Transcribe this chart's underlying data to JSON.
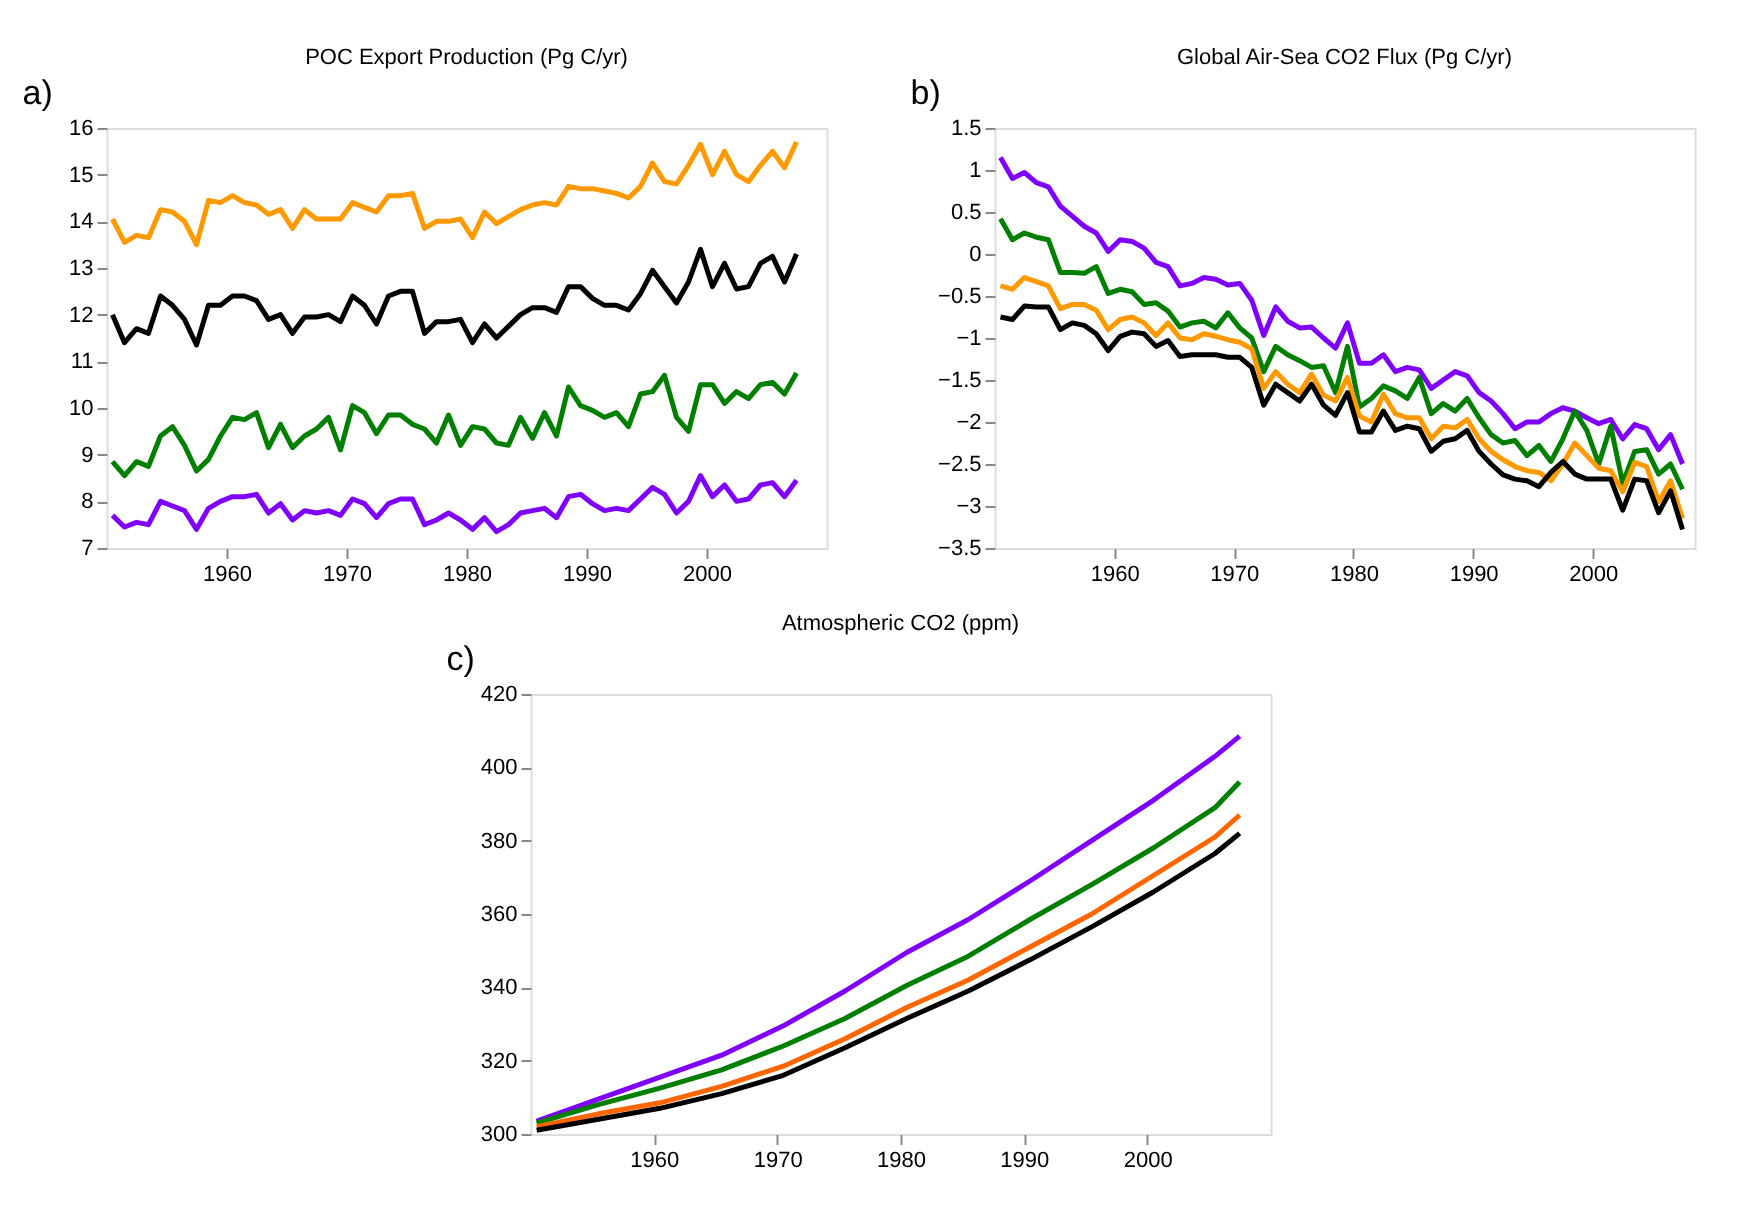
{
  "chart_data": [
    {
      "type": "line",
      "title": "POC Export Production (Pg C/yr)",
      "annotations": [
        "a)"
      ],
      "xlim": [
        1950,
        2010
      ],
      "xticks": [
        1960,
        1970,
        1980,
        1990,
        2000
      ],
      "ylim": [
        7,
        16
      ],
      "yticks": [
        7,
        8,
        9,
        10,
        11,
        12,
        13,
        14,
        15,
        16
      ],
      "grid": false,
      "legend": false,
      "x": [
        1950.5,
        1951.5,
        1952.5,
        1953.5,
        1954.5,
        1955.5,
        1956.5,
        1957.5,
        1958.5,
        1959.5,
        1960.5,
        1961.5,
        1962.5,
        1963.5,
        1964.5,
        1965.5,
        1966.5,
        1967.5,
        1968.5,
        1969.5,
        1970.5,
        1971.5,
        1972.5,
        1973.5,
        1974.5,
        1975.5,
        1976.5,
        1977.5,
        1978.5,
        1979.5,
        1980.5,
        1981.5,
        1982.5,
        1983.5,
        1984.5,
        1985.5,
        1986.5,
        1987.5,
        1988.5,
        1989.5,
        1990.5,
        1991.5,
        1992.5,
        1993.5,
        1994.5,
        1995.5,
        1996.5,
        1997.5,
        1998.5,
        1999.5,
        2000.5,
        2001.5,
        2002.5,
        2003.5,
        2004.5,
        2005.5,
        2006.5,
        2007.5
      ],
      "series": [
        {
          "color": "#ff9900",
          "values": [
            14.05,
            13.55,
            13.7,
            13.65,
            14.25,
            14.2,
            14.0,
            13.5,
            14.45,
            14.4,
            14.55,
            14.4,
            14.35,
            14.15,
            14.25,
            13.85,
            14.25,
            14.05,
            14.05,
            14.05,
            14.4,
            14.3,
            14.2,
            14.55,
            14.55,
            14.6,
            13.85,
            14.0,
            14.0,
            14.05,
            13.65,
            14.2,
            13.95,
            14.1,
            14.25,
            14.35,
            14.4,
            14.35,
            14.75,
            14.7,
            14.7,
            14.65,
            14.6,
            14.5,
            14.75,
            15.25,
            14.85,
            14.8,
            15.2,
            15.65,
            15.0,
            15.5,
            15.0,
            14.85,
            15.2,
            15.5,
            15.15,
            15.7
          ]
        },
        {
          "color": "#000000",
          "values": [
            12.0,
            11.4,
            11.7,
            11.6,
            12.4,
            12.2,
            11.9,
            11.35,
            12.2,
            12.2,
            12.4,
            12.4,
            12.3,
            11.9,
            12.0,
            11.6,
            11.95,
            11.95,
            12.0,
            11.85,
            12.4,
            12.2,
            11.8,
            12.4,
            12.5,
            12.5,
            11.6,
            11.85,
            11.85,
            11.9,
            11.4,
            11.8,
            11.5,
            11.75,
            12.0,
            12.15,
            12.15,
            12.05,
            12.6,
            12.6,
            12.35,
            12.2,
            12.2,
            12.1,
            12.45,
            12.95,
            12.6,
            12.25,
            12.7,
            13.4,
            12.6,
            13.1,
            12.55,
            12.6,
            13.1,
            13.25,
            12.7,
            13.3
          ]
        },
        {
          "color": "#007f00",
          "values": [
            8.85,
            8.55,
            8.85,
            8.75,
            9.4,
            9.6,
            9.2,
            8.65,
            8.9,
            9.4,
            9.8,
            9.75,
            9.9,
            9.15,
            9.65,
            9.15,
            9.4,
            9.55,
            9.8,
            9.1,
            10.05,
            9.9,
            9.45,
            9.85,
            9.85,
            9.65,
            9.55,
            9.25,
            9.85,
            9.2,
            9.6,
            9.55,
            9.25,
            9.2,
            9.8,
            9.35,
            9.9,
            9.4,
            10.45,
            10.05,
            9.95,
            9.8,
            9.9,
            9.6,
            10.3,
            10.35,
            10.7,
            9.8,
            9.5,
            10.5,
            10.5,
            10.1,
            10.35,
            10.2,
            10.5,
            10.55,
            10.3,
            10.75
          ]
        },
        {
          "color": "#8000ff",
          "values": [
            7.7,
            7.45,
            7.55,
            7.5,
            8.0,
            7.9,
            7.8,
            7.4,
            7.85,
            8.0,
            8.1,
            8.1,
            8.15,
            7.75,
            7.95,
            7.6,
            7.8,
            7.75,
            7.8,
            7.7,
            8.05,
            7.95,
            7.65,
            7.95,
            8.05,
            8.05,
            7.5,
            7.6,
            7.75,
            7.6,
            7.4,
            7.65,
            7.35,
            7.5,
            7.75,
            7.8,
            7.85,
            7.65,
            8.1,
            8.15,
            7.95,
            7.8,
            7.85,
            7.8,
            8.05,
            8.3,
            8.15,
            7.75,
            8.0,
            8.55,
            8.1,
            8.35,
            8.0,
            8.05,
            8.35,
            8.4,
            8.1,
            8.45
          ]
        }
      ]
    },
    {
      "type": "line",
      "title": "Global Air-Sea CO2 Flux (Pg C/yr)",
      "annotations": [
        "b)"
      ],
      "xlim": [
        1950,
        2008.5
      ],
      "xticks": [
        1960,
        1970,
        1980,
        1990,
        2000
      ],
      "ylim": [
        -3.5,
        1.5
      ],
      "yticks": [
        -3.5,
        -3,
        -2.5,
        -2,
        -1.5,
        -1,
        -0.5,
        0,
        0.5,
        1,
        1.5
      ],
      "grid": false,
      "legend": false,
      "x": [
        1950.5,
        1951.5,
        1952.5,
        1953.5,
        1954.5,
        1955.5,
        1956.5,
        1957.5,
        1958.5,
        1959.5,
        1960.5,
        1961.5,
        1962.5,
        1963.5,
        1964.5,
        1965.5,
        1966.5,
        1967.5,
        1968.5,
        1969.5,
        1970.5,
        1971.5,
        1972.5,
        1973.5,
        1974.5,
        1975.5,
        1976.5,
        1977.5,
        1978.5,
        1979.5,
        1980.5,
        1981.5,
        1982.5,
        1983.5,
        1984.5,
        1985.5,
        1986.5,
        1987.5,
        1988.5,
        1989.5,
        1990.5,
        1991.5,
        1992.5,
        1993.5,
        1994.5,
        1995.5,
        1996.5,
        1997.5,
        1998.5,
        1999.5,
        2000.5,
        2001.5,
        2002.5,
        2003.5,
        2004.5,
        2005.5,
        2006.5,
        2007.5
      ],
      "series": [
        {
          "color": "#8000ff",
          "values": [
            1.15,
            0.9,
            0.97,
            0.85,
            0.8,
            0.57,
            0.45,
            0.33,
            0.25,
            0.03,
            0.17,
            0.15,
            0.07,
            -0.1,
            -0.15,
            -0.38,
            -0.35,
            -0.28,
            -0.3,
            -0.37,
            -0.35,
            -0.55,
            -0.97,
            -0.63,
            -0.8,
            -0.88,
            -0.87,
            -1.0,
            -1.12,
            -0.82,
            -1.3,
            -1.3,
            -1.2,
            -1.4,
            -1.35,
            -1.38,
            -1.6,
            -1.5,
            -1.4,
            -1.45,
            -1.65,
            -1.75,
            -1.9,
            -2.08,
            -2.0,
            -2.0,
            -1.9,
            -1.83,
            -1.87,
            -1.95,
            -2.02,
            -1.97,
            -2.2,
            -2.03,
            -2.08,
            -2.33,
            -2.15,
            -2.5
          ]
        },
        {
          "color": "#007f00",
          "values": [
            0.42,
            0.17,
            0.25,
            0.2,
            0.17,
            -0.22,
            -0.22,
            -0.23,
            -0.15,
            -0.47,
            -0.42,
            -0.45,
            -0.6,
            -0.58,
            -0.68,
            -0.87,
            -0.82,
            -0.8,
            -0.88,
            -0.7,
            -0.88,
            -1.0,
            -1.4,
            -1.1,
            -1.2,
            -1.27,
            -1.35,
            -1.33,
            -1.65,
            -1.1,
            -1.82,
            -1.72,
            -1.57,
            -1.63,
            -1.72,
            -1.47,
            -1.9,
            -1.78,
            -1.87,
            -1.72,
            -1.95,
            -2.15,
            -2.25,
            -2.22,
            -2.4,
            -2.28,
            -2.47,
            -2.2,
            -1.87,
            -2.1,
            -2.5,
            -2.05,
            -2.73,
            -2.35,
            -2.33,
            -2.62,
            -2.5,
            -2.8
          ]
        },
        {
          "color": "#ff9900",
          "values": [
            -0.38,
            -0.42,
            -0.28,
            -0.33,
            -0.38,
            -0.65,
            -0.6,
            -0.6,
            -0.67,
            -0.9,
            -0.78,
            -0.75,
            -0.82,
            -0.97,
            -0.82,
            -1.0,
            -1.02,
            -0.95,
            -0.98,
            -1.02,
            -1.05,
            -1.13,
            -1.6,
            -1.4,
            -1.55,
            -1.65,
            -1.43,
            -1.68,
            -1.75,
            -1.47,
            -1.93,
            -2.0,
            -1.67,
            -1.9,
            -1.95,
            -1.95,
            -2.2,
            -2.05,
            -2.07,
            -1.97,
            -2.2,
            -2.35,
            -2.45,
            -2.53,
            -2.58,
            -2.6,
            -2.7,
            -2.5,
            -2.25,
            -2.4,
            -2.55,
            -2.58,
            -2.83,
            -2.48,
            -2.53,
            -2.95,
            -2.7,
            -3.15
          ]
        },
        {
          "color": "#000000",
          "values": [
            -0.75,
            -0.78,
            -0.62,
            -0.63,
            -0.63,
            -0.9,
            -0.82,
            -0.85,
            -0.95,
            -1.15,
            -0.98,
            -0.93,
            -0.95,
            -1.1,
            -1.03,
            -1.22,
            -1.2,
            -1.2,
            -1.2,
            -1.23,
            -1.23,
            -1.35,
            -1.8,
            -1.55,
            -1.65,
            -1.75,
            -1.55,
            -1.8,
            -1.92,
            -1.65,
            -2.12,
            -2.12,
            -1.87,
            -2.1,
            -2.05,
            -2.08,
            -2.35,
            -2.23,
            -2.2,
            -2.1,
            -2.35,
            -2.5,
            -2.63,
            -2.68,
            -2.7,
            -2.77,
            -2.6,
            -2.47,
            -2.62,
            -2.68,
            -2.68,
            -2.68,
            -3.05,
            -2.68,
            -2.7,
            -3.08,
            -2.82,
            -3.28
          ]
        }
      ]
    },
    {
      "type": "line",
      "title": "Atmospheric CO2 (ppm)",
      "annotations": [
        "c)"
      ],
      "xlim": [
        1950,
        2010
      ],
      "xticks": [
        1960,
        1970,
        1980,
        1990,
        2000
      ],
      "ylim": [
        300,
        420
      ],
      "yticks": [
        300,
        320,
        340,
        360,
        380,
        400,
        420
      ],
      "grid": false,
      "legend": false,
      "x": [
        1950.5,
        1955.5,
        1960.5,
        1965.5,
        1970.5,
        1975.5,
        1980.5,
        1985.5,
        1990.5,
        1995.5,
        2000.5,
        2005.5,
        2007.5
      ],
      "series": [
        {
          "color": "#8000ff",
          "values": [
            303.5,
            309.5,
            315.5,
            321.5,
            329.5,
            339,
            349.5,
            358.5,
            369,
            380,
            391,
            403,
            408.5
          ]
        },
        {
          "color": "#007f00",
          "values": [
            303,
            308,
            312.5,
            317.5,
            324,
            331.5,
            340.5,
            348.5,
            358.5,
            368,
            378,
            389,
            396
          ]
        },
        {
          "color": "#ff6600",
          "values": [
            302,
            305.5,
            308.5,
            313,
            318.5,
            326,
            334.5,
            342,
            351,
            360,
            370.5,
            381,
            387
          ]
        },
        {
          "color": "#000000",
          "values": [
            301,
            304,
            307,
            311,
            316,
            323.5,
            331.5,
            339,
            347.5,
            356.5,
            366,
            376.5,
            382
          ]
        }
      ]
    }
  ]
}
